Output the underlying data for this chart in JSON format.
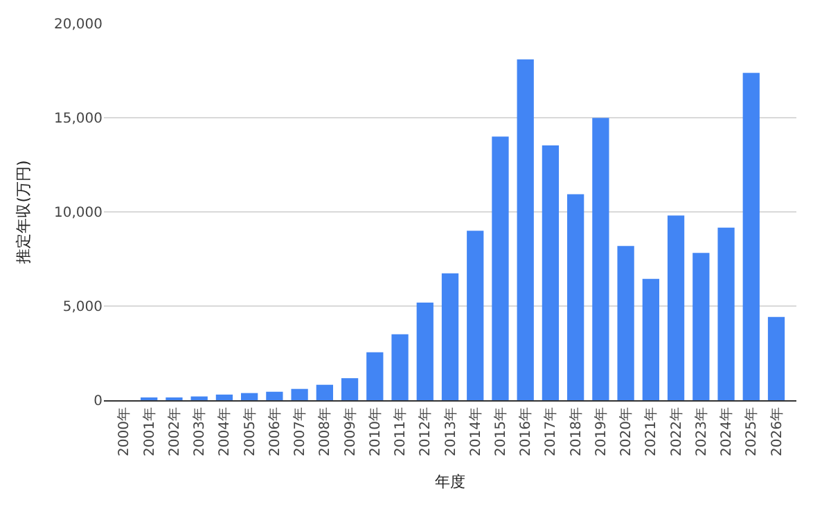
{
  "chart_data": {
    "type": "bar",
    "xlabel": "年度",
    "ylabel": "推定年収(万円)",
    "categories": [
      "2000年",
      "2001年",
      "2002年",
      "2003年",
      "2004年",
      "2005年",
      "2006年",
      "2007年",
      "2008年",
      "2009年",
      "2010年",
      "2011年",
      "2012年",
      "2013年",
      "2014年",
      "2015年",
      "2016年",
      "2017年",
      "2018年",
      "2019年",
      "2020年",
      "2021年",
      "2022年",
      "2023年",
      "2024年",
      "2025年",
      "2026年"
    ],
    "values": [
      0,
      100,
      100,
      200,
      300,
      380,
      450,
      600,
      820,
      1170,
      2550,
      3500,
      5180,
      6740,
      9000,
      14000,
      18100,
      13530,
      10940,
      14990,
      8190,
      6440,
      9810,
      7820,
      9160,
      17380,
      4420
    ],
    "color": "#4285f4",
    "ylim": [
      0,
      20000
    ],
    "yticks": [
      {
        "value": 0,
        "label": "0"
      },
      {
        "value": 5000,
        "label": "5,000"
      },
      {
        "value": 10000,
        "label": "10,000"
      },
      {
        "value": 15000,
        "label": "15,000"
      },
      {
        "value": 20000,
        "label": "20,000"
      }
    ],
    "grid": "y"
  }
}
